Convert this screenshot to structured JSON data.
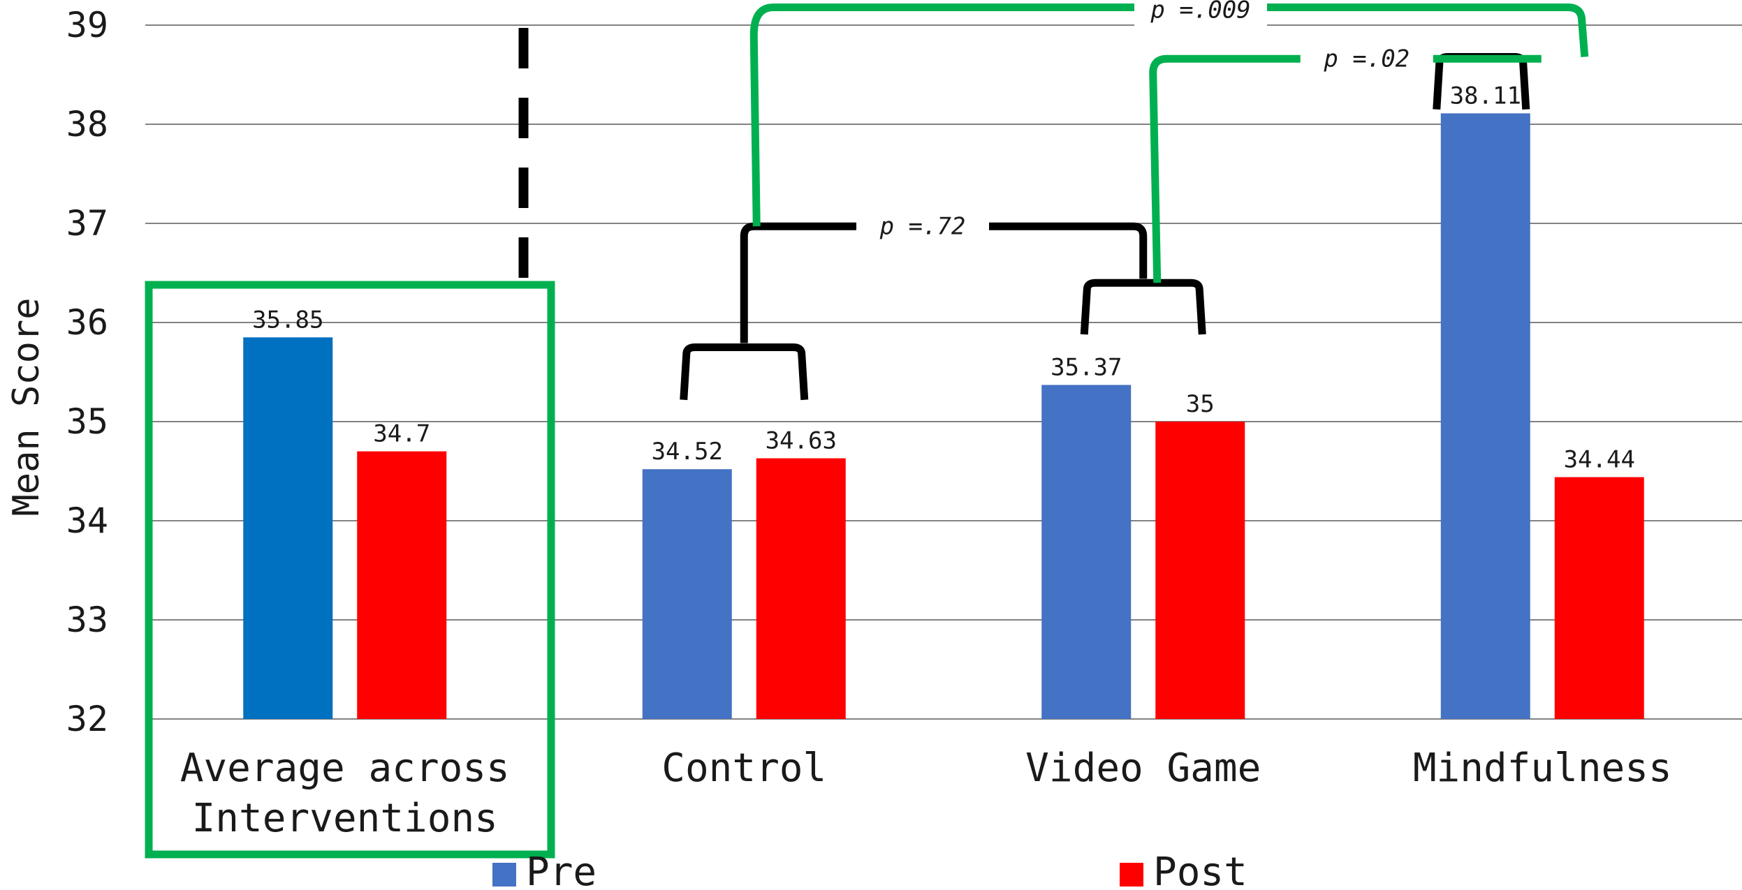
{
  "chart_data": {
    "type": "bar",
    "ylabel": "Mean Score",
    "ylim": [
      32,
      39
    ],
    "yticks": [
      "32",
      "33",
      "34",
      "35",
      "36",
      "37",
      "38",
      "39"
    ],
    "grid": true,
    "categories": [
      "Average across Interventions",
      "Control",
      "Video Game",
      "Mindfulness"
    ],
    "category_lines": [
      [
        "Average across",
        "Interventions"
      ],
      [
        "Control"
      ],
      [
        "Video Game"
      ],
      [
        "Mindfulness"
      ]
    ],
    "series": [
      {
        "name": "Pre",
        "values": [
          35.85,
          34.52,
          35.37,
          38.11
        ],
        "labels": [
          "35.85",
          "34.52",
          "35.37",
          "38.11"
        ]
      },
      {
        "name": "Post",
        "values": [
          34.7,
          34.63,
          35,
          34.44
        ],
        "labels": [
          "34.7",
          "34.63",
          "35",
          "34.44"
        ]
      }
    ],
    "legend": {
      "placement": "bottom",
      "items": [
        "Pre",
        "Post"
      ]
    },
    "annotations": [
      {
        "text": "p =.72",
        "between": [
          "Control",
          "Video Game"
        ]
      },
      {
        "text": "p =.02",
        "between": [
          "Video Game",
          "Mindfulness"
        ]
      },
      {
        "text": "p =.009",
        "between": [
          "Control",
          "Mindfulness"
        ]
      }
    ],
    "highlight_box": "Average across Interventions"
  },
  "colors": {
    "pre": "#4472C4",
    "pre_average": "#0070C0",
    "post": "#FF0000",
    "highlight": "#00B050",
    "bracket": "#000000"
  }
}
